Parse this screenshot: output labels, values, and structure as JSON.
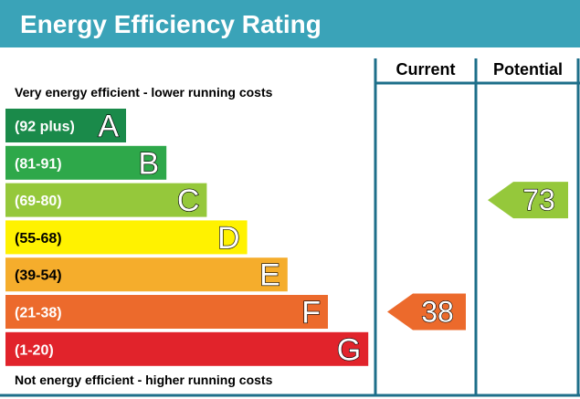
{
  "title": "Energy Efficiency Rating",
  "columns": {
    "current": "Current",
    "potential": "Potential"
  },
  "top_caption": "Very energy efficient - lower running costs",
  "bottom_caption": "Not energy efficient - higher running costs",
  "colors": {
    "header": "#3aa3b8",
    "frame": "#1e6f8a"
  },
  "chart_data": {
    "type": "bar",
    "title": "Energy Efficiency Rating",
    "categories": [
      "A",
      "B",
      "C",
      "D",
      "E",
      "F",
      "G"
    ],
    "bands": [
      {
        "letter": "A",
        "range": "(92 plus)",
        "min": 92,
        "max": 100,
        "color": "#1a8a4a"
      },
      {
        "letter": "B",
        "range": "(81-91)",
        "min": 81,
        "max": 91,
        "color": "#2ea84a"
      },
      {
        "letter": "C",
        "range": "(69-80)",
        "min": 69,
        "max": 80,
        "color": "#95c83b"
      },
      {
        "letter": "D",
        "range": "(55-68)",
        "min": 55,
        "max": 68,
        "color": "#fff200"
      },
      {
        "letter": "E",
        "range": "(39-54)",
        "min": 39,
        "max": 54,
        "color": "#f5ad2c"
      },
      {
        "letter": "F",
        "range": "(21-38)",
        "min": 21,
        "max": 38,
        "color": "#ec6a2c"
      },
      {
        "letter": "G",
        "range": "(1-20)",
        "min": 1,
        "max": 20,
        "color": "#e1232b"
      }
    ],
    "current": {
      "value": 38,
      "band": "F",
      "color": "#ec6a2c"
    },
    "potential": {
      "value": 73,
      "band": "C",
      "color": "#95c83b"
    }
  }
}
